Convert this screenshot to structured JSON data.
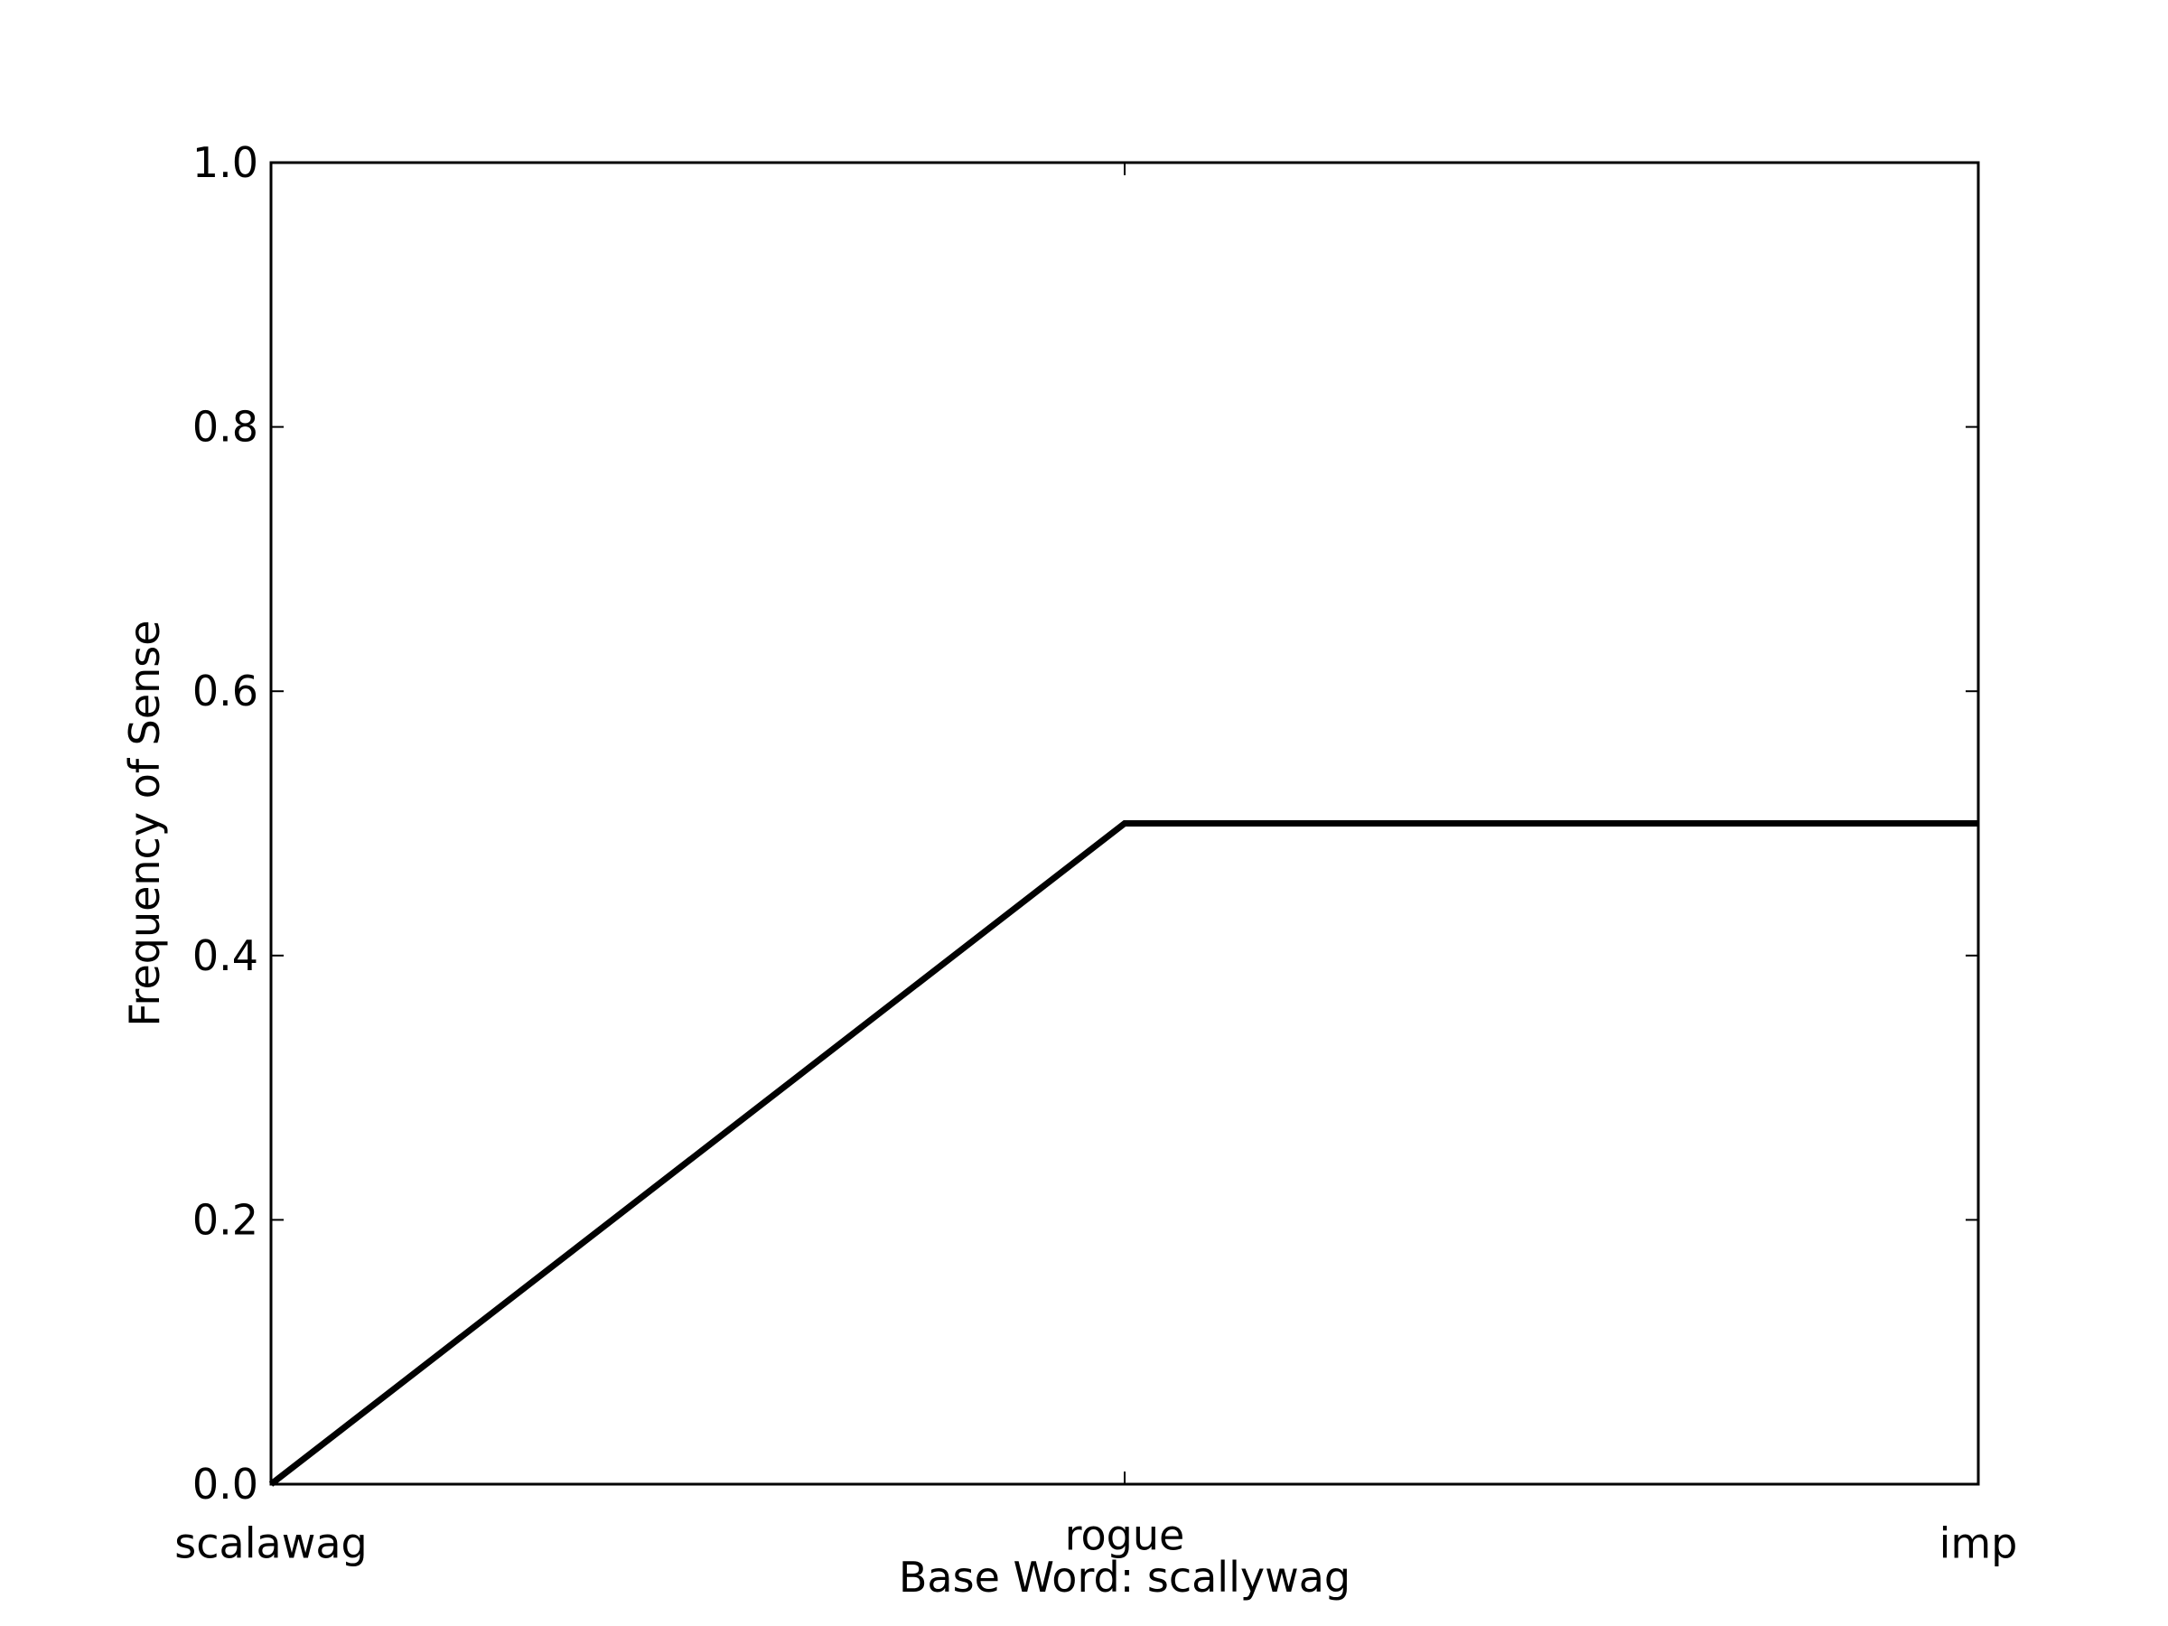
{
  "chart_data": {
    "type": "line",
    "title": "",
    "xlabel": "Base Word: scallywag",
    "ylabel": "Frequency of Sense",
    "categories": [
      "scalawag",
      "rogue",
      "imp"
    ],
    "series": [
      {
        "values": [
          0.0,
          0.5,
          0.5
        ]
      }
    ],
    "ylim": [
      0,
      1.0
    ],
    "yticks": [
      "0.0",
      "0.2",
      "0.4",
      "0.6",
      "0.8",
      "1.0"
    ],
    "grid": false,
    "legend": "none",
    "colors": {
      "line": "#000000",
      "axes": "#000000",
      "background": "#ffffff"
    }
  }
}
